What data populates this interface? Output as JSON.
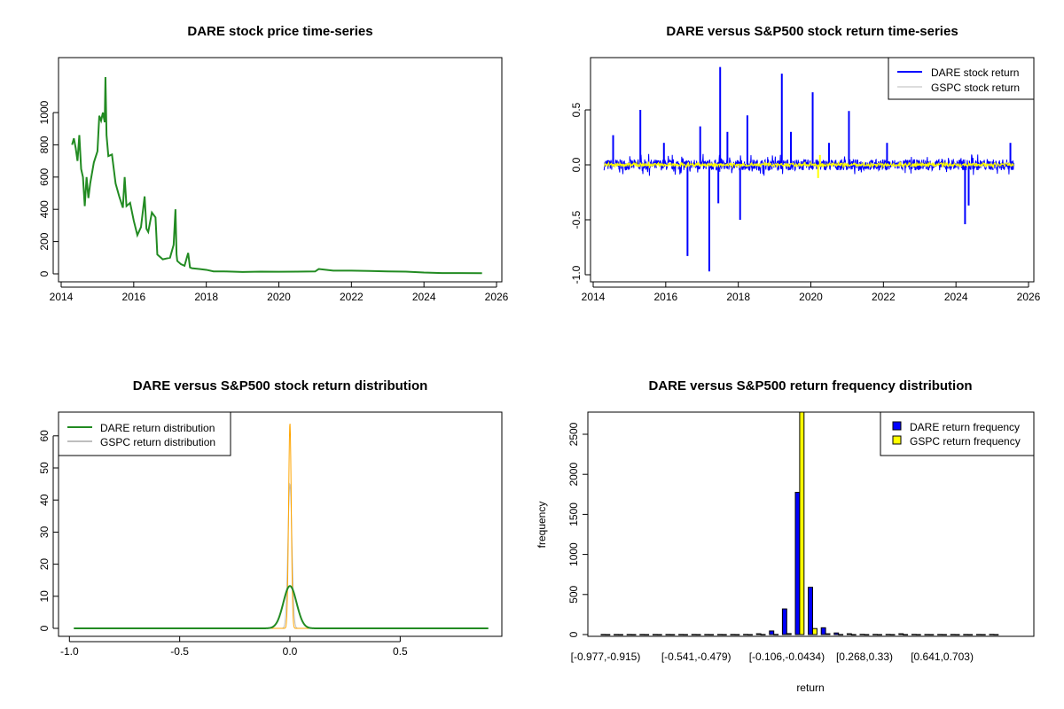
{
  "chart_data": [
    {
      "type": "line",
      "title": "DARE stock price time-series",
      "xlabel": "",
      "ylabel": "",
      "xlim": [
        2014,
        2026
      ],
      "ylim": [
        0,
        1100
      ],
      "xticks": [
        "2014",
        "2016",
        "2018",
        "2020",
        "2022",
        "2024",
        "2026"
      ],
      "yticks": [
        "0",
        "200",
        "400",
        "600",
        "800",
        "1000"
      ],
      "color": "#228B22",
      "x": [
        2014.3,
        2014.35,
        2014.4,
        2014.45,
        2014.5,
        2014.55,
        2014.6,
        2014.65,
        2014.7,
        2014.75,
        2014.8,
        2014.9,
        2015.0,
        2015.05,
        2015.1,
        2015.15,
        2015.2,
        2015.22,
        2015.25,
        2015.3,
        2015.4,
        2015.5,
        2015.6,
        2015.7,
        2015.75,
        2015.8,
        2015.9,
        2016.0,
        2016.1,
        2016.2,
        2016.3,
        2016.35,
        2016.4,
        2016.5,
        2016.6,
        2016.65,
        2016.7,
        2016.8,
        2016.9,
        2017.0,
        2017.1,
        2017.15,
        2017.18,
        2017.2,
        2017.3,
        2017.4,
        2017.5,
        2017.55,
        2017.6,
        2017.8,
        2018.0,
        2018.2,
        2018.5,
        2019.0,
        2019.5,
        2020.0,
        2020.5,
        2021.0,
        2021.1,
        2021.5,
        2022.0,
        2022.5,
        2023.0,
        2023.5,
        2024.0,
        2024.5,
        2025.0,
        2025.6
      ],
      "y": [
        800,
        840,
        780,
        700,
        860,
        650,
        600,
        420,
        600,
        470,
        560,
        690,
        760,
        980,
        950,
        1000,
        940,
        1220,
        860,
        730,
        740,
        560,
        480,
        410,
        600,
        420,
        440,
        330,
        240,
        290,
        480,
        280,
        260,
        380,
        350,
        120,
        110,
        90,
        95,
        100,
        180,
        400,
        120,
        80,
        60,
        50,
        130,
        40,
        35,
        30,
        25,
        15,
        15,
        12,
        14,
        13,
        14,
        15,
        30,
        20,
        20,
        18,
        15,
        14,
        8,
        5,
        5,
        4
      ]
    },
    {
      "type": "line",
      "title": "DARE versus S&P500 stock return time-series",
      "xlim": [
        2014,
        2026
      ],
      "ylim": [
        -1.0,
        0.9
      ],
      "xticks": [
        "2014",
        "2016",
        "2018",
        "2020",
        "2022",
        "2024",
        "2026"
      ],
      "yticks": [
        "-1.0",
        "-0.5",
        "0.0",
        "0.5"
      ],
      "legend": {
        "placement": "top-right",
        "entries": [
          "DARE stock return",
          "GSPC stock return"
        ]
      },
      "series": [
        {
          "name": "DARE stock return",
          "color": "#0000FF",
          "noise": 0.05,
          "spikes_x": [
            2014.55,
            2015.3,
            2015.95,
            2016.6,
            2016.95,
            2017.2,
            2017.45,
            2017.5,
            2017.7,
            2018.05,
            2018.25,
            2019.2,
            2019.45,
            2020.05,
            2020.5,
            2021.05,
            2022.1,
            2024.25,
            2024.35,
            2025.5
          ],
          "spikes_y": [
            0.27,
            0.5,
            0.2,
            -0.83,
            0.35,
            -0.97,
            -0.35,
            0.89,
            0.3,
            -0.5,
            0.45,
            0.83,
            0.3,
            0.66,
            0.2,
            0.49,
            0.2,
            -0.54,
            -0.37,
            0.2
          ]
        },
        {
          "name": "GSPC stock return",
          "color": "#FFFF00",
          "noise": 0.015,
          "spikes_x": [
            2020.2,
            2020.25
          ],
          "spikes_y": [
            -0.12,
            0.09
          ]
        }
      ]
    },
    {
      "type": "line",
      "title": "DARE versus S&P500 stock return distribution",
      "xlim": [
        -1.05,
        0.98
      ],
      "ylim": [
        0,
        66
      ],
      "xticks": [
        "-1.0",
        "-0.5",
        "0.0",
        "0.5"
      ],
      "yticks": [
        "0",
        "10",
        "20",
        "30",
        "40",
        "50",
        "60"
      ],
      "legend": {
        "placement": "top-left",
        "entries": [
          "DARE return distribution",
          "GSPC return distribution"
        ]
      },
      "series": [
        {
          "name": "DARE return distribution",
          "color": "#228B22",
          "peak": 13.2,
          "sd": 0.03,
          "from": -0.98,
          "to": 0.9
        },
        {
          "name": "GSPC return distribution",
          "color": "#BEBEBE",
          "peak": 45,
          "sd": 0.009,
          "from": -0.98,
          "to": 0.9
        },
        {
          "name": "",
          "color": "#FFA500",
          "peak": 64,
          "sd": 0.006,
          "from": -0.1,
          "to": 0.1
        }
      ]
    },
    {
      "type": "bar",
      "title": "DARE versus S&P500 return frequency distribution",
      "xlabel": "return",
      "ylabel": "frequency",
      "ylim": [
        0,
        2750
      ],
      "yticks": [
        "0",
        "500",
        "1000",
        "1500",
        "2000",
        "2500"
      ],
      "xticklabels": [
        {
          "index": 0,
          "label": "[-0.977,-0.915)"
        },
        {
          "index": 7,
          "label": "[-0.541,-0.479)"
        },
        {
          "index": 14,
          "label": "[-0.106,-0.0434)"
        },
        {
          "index": 20,
          "label": "[0.268,0.33)"
        },
        {
          "index": 26,
          "label": "[0.641,0.703)"
        }
      ],
      "legend": {
        "placement": "top-right",
        "entries": [
          "DARE return frequency",
          "GSPC return frequency"
        ]
      },
      "series": [
        {
          "name": "DARE return frequency",
          "color": "#0000FF",
          "values": [
            1,
            1,
            1,
            1,
            1,
            1,
            1,
            1,
            1,
            1,
            1,
            2,
            10,
            45,
            320,
            1775,
            590,
            85,
            20,
            10,
            3,
            2,
            2,
            10,
            2,
            1,
            1,
            1,
            1,
            1,
            2
          ]
        },
        {
          "name": "GSPC return frequency",
          "color": "#FFFF00",
          "values": [
            0,
            0,
            0,
            0,
            0,
            0,
            0,
            0,
            0,
            0,
            0,
            0,
            1,
            2,
            12,
            2860,
            75,
            10,
            1,
            0,
            0,
            0,
            0,
            0,
            0,
            0,
            0,
            0,
            0,
            0,
            0
          ]
        }
      ]
    }
  ]
}
